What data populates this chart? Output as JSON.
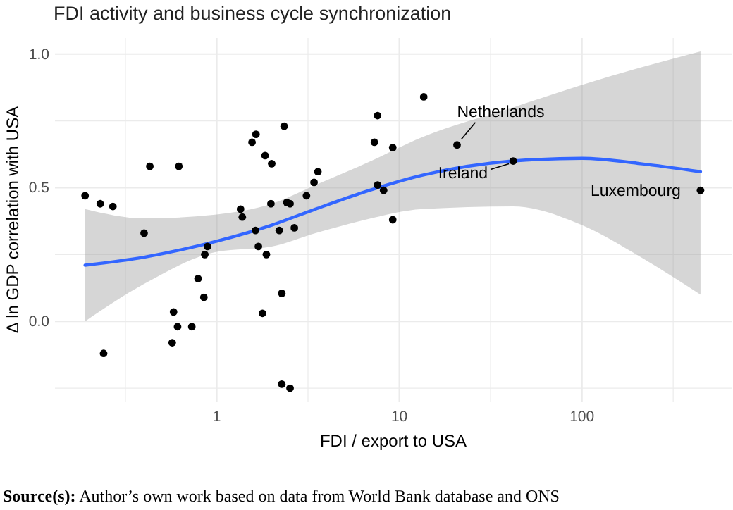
{
  "chart_data": {
    "type": "scatter",
    "title": "FDI activity and business cycle synchronization",
    "xlabel": "FDI / export to USA",
    "ylabel": "Δ ln GDP correlation with USA",
    "log": "x",
    "grid": true,
    "xlim": [
      0.13,
      660
    ],
    "xticks": [
      {
        "value": 0.316,
        "label": null
      },
      1,
      {
        "value": 3.16,
        "label": null
      },
      10,
      {
        "value": 31.6,
        "label": null
      },
      100,
      {
        "value": 316,
        "label": null
      }
    ],
    "ylim": [
      -0.3,
      1.06
    ],
    "yticks": [
      {
        "value": -0.25,
        "label": null
      },
      {
        "value": 0,
        "label": "0.0"
      },
      {
        "value": 0.25,
        "label": null
      },
      0.5,
      {
        "value": 0.75,
        "label": null
      },
      {
        "value": 1,
        "label": "1.0"
      }
    ],
    "series": [
      {
        "type": "scatter",
        "color": "#000000",
        "marker": "circle",
        "x": [
          0.19,
          0.23,
          0.27,
          0.24,
          0.4,
          0.43,
          0.62,
          0.58,
          0.61,
          0.57,
          0.73,
          0.79,
          0.85,
          0.86,
          0.89,
          1.35,
          1.38,
          1.56,
          1.64,
          1.63,
          1.69,
          1.78,
          1.84,
          1.87,
          2.0,
          1.98,
          2.2,
          2.27,
          2.34,
          2.42,
          2.52,
          2.66,
          2.27,
          2.52,
          3.1,
          3.41,
          3.58,
          13.6,
          7.6,
          7.3,
          9.2,
          7.6,
          8.2,
          9.2,
          20.7,
          42,
          446
        ],
        "values": [
          0.47,
          0.44,
          0.43,
          -0.12,
          0.33,
          0.58,
          0.58,
          0.035,
          -0.02,
          -0.08,
          -0.02,
          0.16,
          0.09,
          0.25,
          0.28,
          0.42,
          0.39,
          0.67,
          0.7,
          0.34,
          0.28,
          0.03,
          0.62,
          0.25,
          0.59,
          0.44,
          0.34,
          0.105,
          0.73,
          0.445,
          0.44,
          0.35,
          -0.235,
          -0.25,
          0.47,
          0.52,
          0.56,
          0.84,
          0.77,
          0.67,
          0.65,
          0.51,
          0.49,
          0.38,
          0.66,
          0.6,
          0.49
        ]
      },
      {
        "type": "line",
        "color": "#3366ff",
        "marker": "none",
        "line_style": "solid",
        "x": [
          0.19,
          0.4,
          1,
          2,
          3.47,
          6.5,
          13.4,
          41.8,
          100,
          210,
          446
        ],
        "values": [
          0.21,
          0.24,
          0.3,
          0.36,
          0.42,
          0.485,
          0.547,
          0.6,
          0.61,
          0.59,
          0.56
        ],
        "lower": [
          0.0,
          0.14,
          0.26,
          0.28,
          0.33,
          0.38,
          0.42,
          0.43,
          0.36,
          0.24,
          0.1
        ],
        "upper": [
          0.42,
          0.385,
          0.4,
          0.44,
          0.51,
          0.59,
          0.69,
          0.8,
          0.885,
          0.95,
          1.01
        ]
      }
    ],
    "annotations": [
      {
        "text": "Netherlands",
        "x": 20.7,
        "y": 0.66
      },
      {
        "text": "Ireland",
        "x": 42,
        "y": 0.6
      },
      {
        "text": "Luxembourg",
        "x": 446,
        "y": 0.49
      },
      "Source(s): Author’s own work based on data from World Bank database and ONS"
    ]
  }
}
